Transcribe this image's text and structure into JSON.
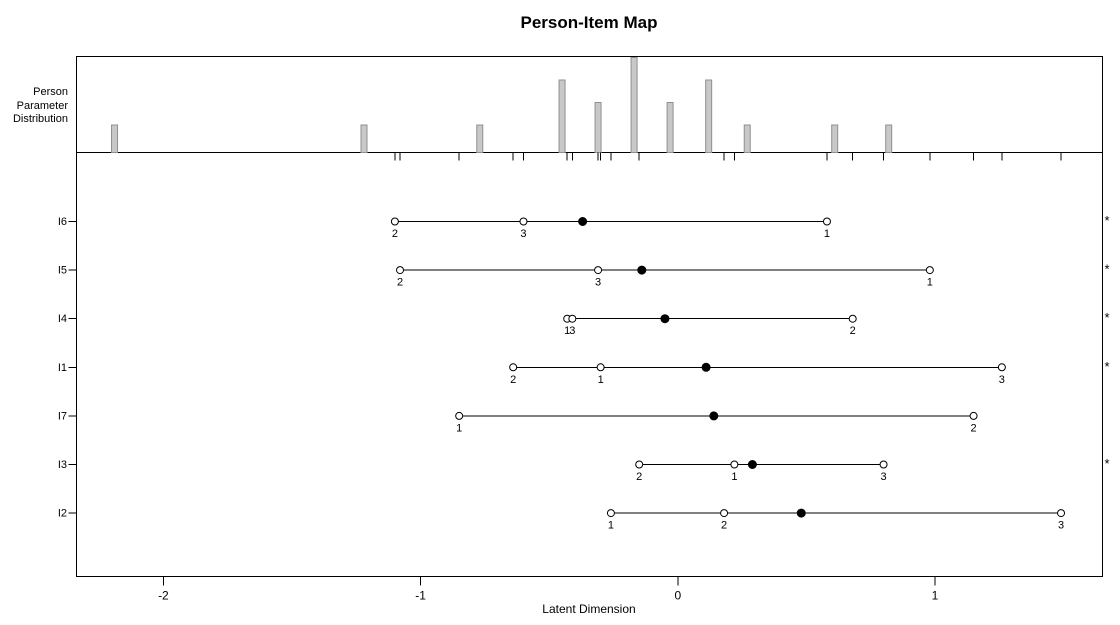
{
  "title": "Person-Item Map",
  "top_panel": {
    "label_lines": [
      "Person",
      "Parameter",
      "Distribution"
    ]
  },
  "chart_data": {
    "type": "person-item-map",
    "title": "Person-Item Map",
    "xlabel": "Latent Dimension",
    "x_ticks": [
      -2,
      -1,
      0,
      1
    ],
    "xlim": [
      -2.34,
      1.65
    ],
    "legend_position": "none",
    "grid": false,
    "person_distribution": {
      "description": "histogram spikes of person parameters (top panel)",
      "values": [
        -2.19,
        -1.22,
        -0.77,
        -0.45,
        -0.31,
        -0.17,
        -0.03,
        0.12,
        0.27,
        0.61,
        0.82
      ],
      "counts": [
        1,
        1,
        1,
        3,
        2,
        4,
        2,
        3,
        1,
        1,
        1
      ],
      "max_count": 4,
      "bar_fill": "#c8c8c8",
      "bar_border": "#8f8f8f"
    },
    "items": [
      {
        "name": "I6",
        "location": -0.37,
        "flagged": true,
        "categories": [
          {
            "label": "2",
            "value": -1.1
          },
          {
            "label": "3",
            "value": -0.6
          },
          {
            "label": "1",
            "value": 0.58
          }
        ]
      },
      {
        "name": "I5",
        "location": -0.14,
        "flagged": true,
        "categories": [
          {
            "label": "2",
            "value": -1.08
          },
          {
            "label": "3",
            "value": -0.31
          },
          {
            "label": "1",
            "value": 0.98
          }
        ]
      },
      {
        "name": "I4",
        "location": -0.05,
        "flagged": true,
        "categories": [
          {
            "label": "1",
            "value": -0.43
          },
          {
            "label": "3",
            "value": -0.41
          },
          {
            "label": "2",
            "value": 0.68
          }
        ]
      },
      {
        "name": "I1",
        "location": 0.11,
        "flagged": true,
        "categories": [
          {
            "label": "2",
            "value": -0.64
          },
          {
            "label": "1",
            "value": -0.3
          },
          {
            "label": "3",
            "value": 1.26
          }
        ]
      },
      {
        "name": "I7",
        "location": 0.14,
        "flagged": false,
        "categories": [
          {
            "label": "1",
            "value": -0.85
          },
          {
            "label": "2",
            "value": 1.15
          }
        ]
      },
      {
        "name": "I3",
        "location": 0.29,
        "flagged": true,
        "categories": [
          {
            "label": "2",
            "value": -0.15
          },
          {
            "label": "1",
            "value": 0.22
          },
          {
            "label": "3",
            "value": 0.8
          }
        ]
      },
      {
        "name": "I2",
        "location": 0.48,
        "flagged": false,
        "categories": [
          {
            "label": "1",
            "value": -0.26
          },
          {
            "label": "2",
            "value": 0.18
          },
          {
            "label": "3",
            "value": 1.49
          }
        ]
      }
    ],
    "flag_symbol": "*"
  }
}
